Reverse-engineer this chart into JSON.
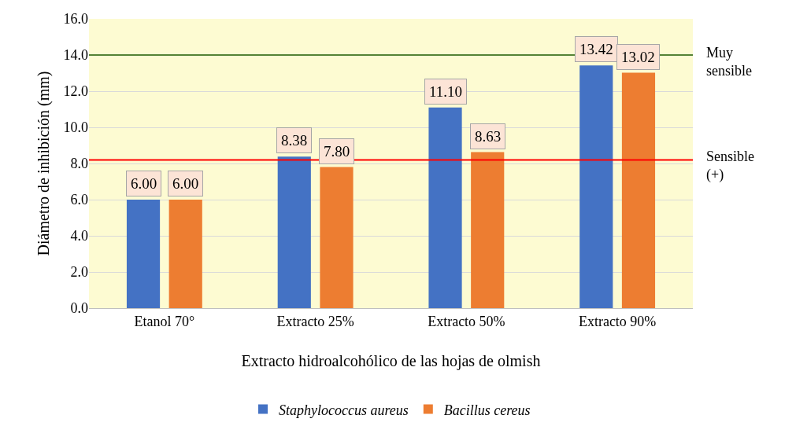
{
  "chart_data": {
    "type": "bar",
    "xlabel": "Extracto hidroalcohólico de las hojas de olmish",
    "ylabel": "Diámetro de inhibición (mm)",
    "categories": [
      "Etanol 70°",
      "Extracto 25%",
      "Extracto 50%",
      "Extracto 90%"
    ],
    "series": [
      {
        "name": "Staphylococcus aureus",
        "color": "#4472c4",
        "values": [
          6.0,
          8.38,
          11.1,
          13.42
        ],
        "value_labels": [
          "6.00",
          "8.38",
          "11.10",
          "13.42"
        ]
      },
      {
        "name": "Bacillus cereus",
        "color": "#ed7d31",
        "values": [
          6.0,
          7.8,
          8.63,
          13.02
        ],
        "value_labels": [
          "6.00",
          "7.80",
          "8.63",
          "13.02"
        ]
      }
    ],
    "ylim": [
      0,
      16
    ],
    "yticks": [
      {
        "value": 0,
        "label": "0.0"
      },
      {
        "value": 2,
        "label": "2.0"
      },
      {
        "value": 4,
        "label": "4.0"
      },
      {
        "value": 6,
        "label": "6.0"
      },
      {
        "value": 8,
        "label": "8.0"
      },
      {
        "value": 10,
        "label": "10.0"
      },
      {
        "value": 12,
        "label": "12.0"
      },
      {
        "value": 14,
        "label": "14.0"
      },
      {
        "value": 16,
        "label": "16.0"
      }
    ],
    "ref_lines": [
      {
        "axis": "y",
        "value": 14.0,
        "label": "Muy sensible",
        "color": "#548235"
      },
      {
        "axis": "y",
        "value": 8.2,
        "label": "Sensible (+)",
        "color": "#ff0000"
      }
    ],
    "grid": "y",
    "legend": "bottom"
  }
}
